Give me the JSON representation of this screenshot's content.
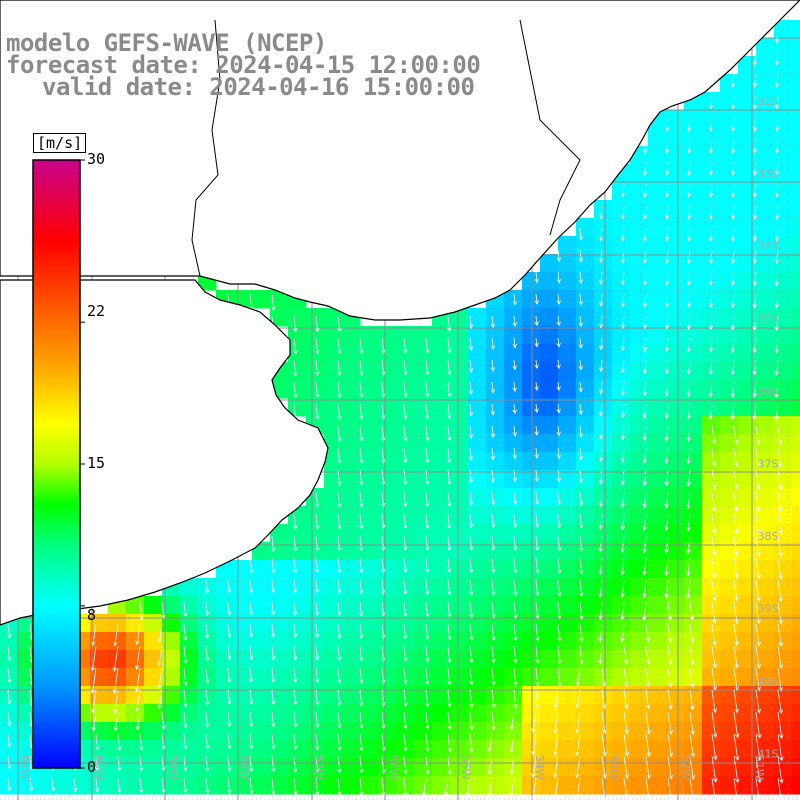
{
  "title": {
    "line1": "modelo GEFS-WAVE (NCEP)",
    "line2": "forecast date: 2024-04-15 12:00:00",
    "line3": "valid date: 2024-04-16 15:00:00"
  },
  "colorbar": {
    "unit": "[m/s]",
    "min": 0,
    "max": 30,
    "ticks": [
      "30",
      "22",
      "15",
      "8",
      "0"
    ],
    "tick_values": [
      30,
      22,
      15,
      8,
      0
    ],
    "stops": [
      {
        "v": 0,
        "c": "#0000ff"
      },
      {
        "v": 4,
        "c": "#0096ff"
      },
      {
        "v": 8,
        "c": "#00ffff"
      },
      {
        "v": 11,
        "c": "#00ff7f"
      },
      {
        "v": 13,
        "c": "#00ff00"
      },
      {
        "v": 15,
        "c": "#b4ff00"
      },
      {
        "v": 17,
        "c": "#ffff00"
      },
      {
        "v": 20,
        "c": "#ffa000"
      },
      {
        "v": 23,
        "c": "#ff5000"
      },
      {
        "v": 26,
        "c": "#ff0000"
      },
      {
        "v": 30,
        "c": "#c8008c"
      }
    ]
  },
  "map": {
    "variable": "wind speed (m/s) with direction arrows",
    "lat_labels": [
      "32S",
      "33S",
      "34S",
      "35S",
      "36S",
      "37S",
      "38S",
      "39S",
      "40S",
      "41S"
    ],
    "lon_labels": [
      "61W",
      "60W",
      "59W",
      "58W",
      "57W",
      "56W",
      "55W",
      "54W",
      "53W",
      "52W",
      "51W"
    ],
    "colors": {
      "grid": "#8c8c8c",
      "land": "#ffffff",
      "coast": "#000000",
      "arrow": "#ffffff",
      "label": "#aaaaaa"
    }
  }
}
